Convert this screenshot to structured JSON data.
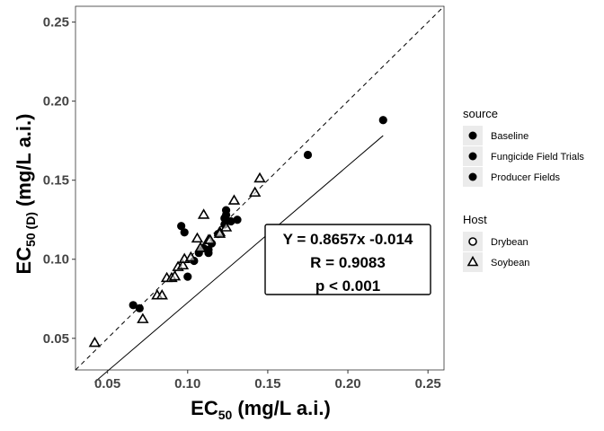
{
  "chart_data": {
    "type": "scatter",
    "xlabel": {
      "main": "EC",
      "sub": "50",
      "unit": "(mg/L a.i.)"
    },
    "ylabel": {
      "main": "EC",
      "sub": "50 (D)",
      "unit": "(mg/L a.i.)"
    },
    "xlim": [
      0.03,
      0.26
    ],
    "ylim": [
      0.03,
      0.26
    ],
    "x_ticks": [
      0.05,
      0.1,
      0.15,
      0.2,
      0.25
    ],
    "x_tick_labels": [
      "0.05",
      "0.10",
      "0.15",
      "0.20",
      "0.25"
    ],
    "y_ticks": [
      0.05,
      0.1,
      0.15,
      0.2,
      0.25
    ],
    "y_tick_labels": [
      "0.05",
      "0.10",
      "0.15",
      "0.20",
      "0.25"
    ],
    "grid": false,
    "fit_line": {
      "slope": 0.8657,
      "intercept": -0.014,
      "x_range": [
        0.042,
        0.222
      ]
    },
    "reference_line": {
      "type": "y=x",
      "style": "dashed"
    },
    "annotation": [
      "Y = 0.8657x -0.014",
      "R = 0.9083",
      "p < 0.001"
    ],
    "legend_source": {
      "title": "source",
      "items": [
        "Baseline",
        "Fungicide Field Trials",
        "Producer Fields"
      ]
    },
    "legend_host": {
      "title": "Host",
      "items": [
        {
          "label": "Drybean",
          "shape": "circle"
        },
        {
          "label": "Soybean",
          "shape": "triangle"
        }
      ]
    },
    "series": [
      {
        "host": "Drybean",
        "shape": "circle",
        "points": [
          [
            0.066,
            0.071
          ],
          [
            0.07,
            0.069
          ],
          [
            0.096,
            0.121
          ],
          [
            0.098,
            0.117
          ],
          [
            0.1,
            0.089
          ],
          [
            0.104,
            0.099
          ],
          [
            0.107,
            0.104
          ],
          [
            0.11,
            0.107
          ],
          [
            0.113,
            0.106
          ],
          [
            0.113,
            0.104
          ],
          [
            0.115,
            0.11
          ],
          [
            0.119,
            0.116
          ],
          [
            0.123,
            0.122
          ],
          [
            0.123,
            0.126
          ],
          [
            0.124,
            0.128
          ],
          [
            0.124,
            0.131
          ],
          [
            0.127,
            0.124
          ],
          [
            0.131,
            0.125
          ],
          [
            0.175,
            0.166
          ],
          [
            0.222,
            0.188
          ]
        ]
      },
      {
        "host": "Soybean",
        "shape": "triangle",
        "points": [
          [
            0.042,
            0.047
          ],
          [
            0.072,
            0.062
          ],
          [
            0.081,
            0.077
          ],
          [
            0.084,
            0.077
          ],
          [
            0.087,
            0.088
          ],
          [
            0.09,
            0.088
          ],
          [
            0.092,
            0.089
          ],
          [
            0.094,
            0.095
          ],
          [
            0.097,
            0.096
          ],
          [
            0.098,
            0.1
          ],
          [
            0.102,
            0.101
          ],
          [
            0.106,
            0.113
          ],
          [
            0.108,
            0.107
          ],
          [
            0.11,
            0.128
          ],
          [
            0.113,
            0.112
          ],
          [
            0.114,
            0.112
          ],
          [
            0.12,
            0.117
          ],
          [
            0.12,
            0.116
          ],
          [
            0.124,
            0.12
          ],
          [
            0.129,
            0.137
          ],
          [
            0.142,
            0.142
          ],
          [
            0.145,
            0.151
          ]
        ]
      }
    ]
  }
}
